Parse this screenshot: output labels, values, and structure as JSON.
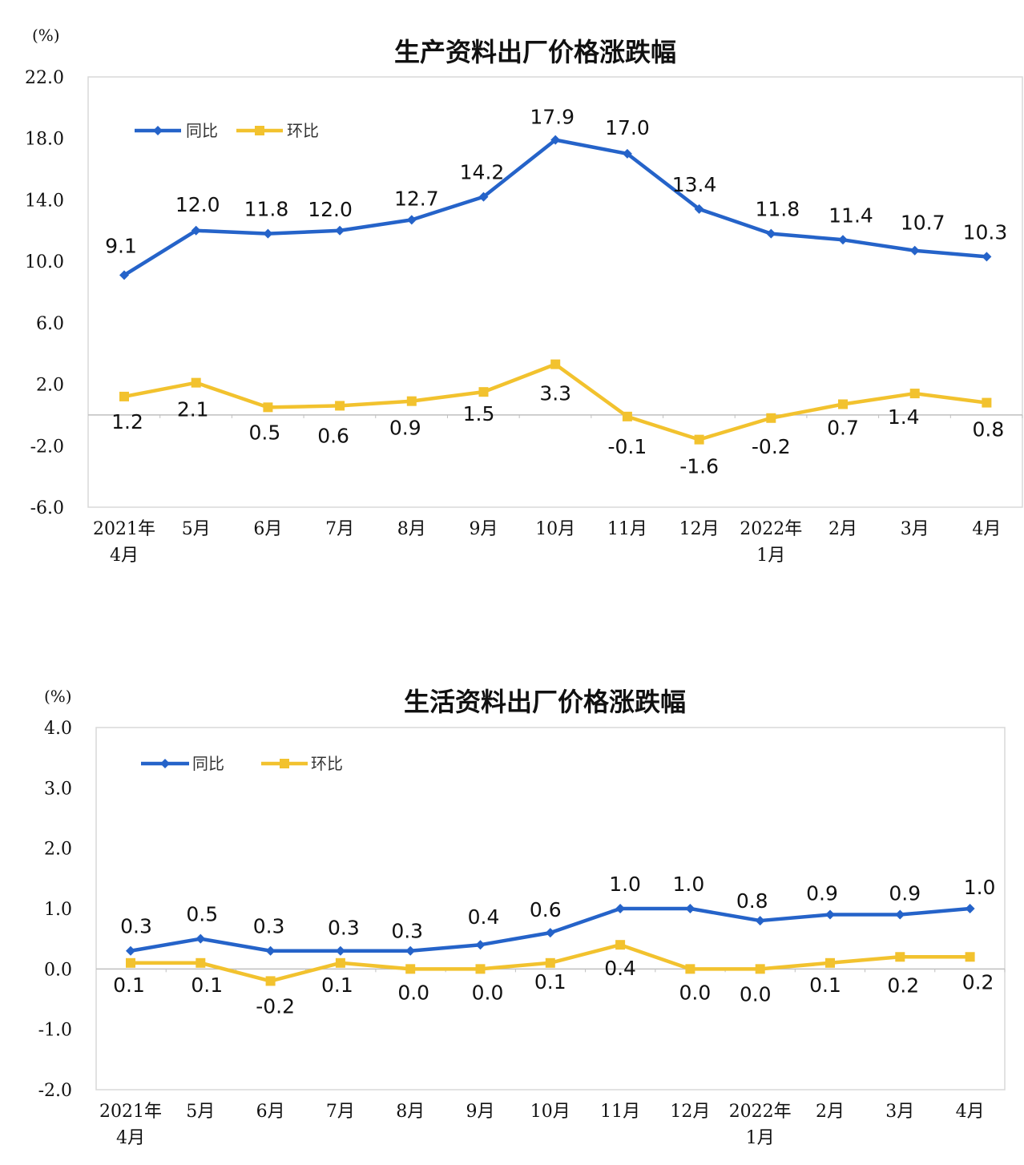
{
  "chart_data": [
    {
      "type": "line",
      "title": "生产资料出厂价格涨跌幅",
      "unit": "(%)",
      "ylim": [
        -6.0,
        22.0
      ],
      "yticks": [
        "22.0",
        "18.0",
        "14.0",
        "10.0",
        "6.0",
        "2.0",
        "-2.0",
        "-6.0"
      ],
      "ytick_values": [
        22,
        18,
        14,
        10,
        6,
        2,
        -2,
        -6
      ],
      "categories": [
        [
          "2021年",
          "4月"
        ],
        [
          "5月"
        ],
        [
          "6月"
        ],
        [
          "7月"
        ],
        [
          "8月"
        ],
        [
          "9月"
        ],
        [
          "10月"
        ],
        [
          "11月"
        ],
        [
          "12月"
        ],
        [
          "2022年",
          "1月"
        ],
        [
          "2月"
        ],
        [
          "3月"
        ],
        [
          "4月"
        ]
      ],
      "legend_position": "top-left",
      "series": [
        {
          "name": "同比",
          "color": "#2563c9",
          "marker": "diamond",
          "values": [
            9.1,
            12.0,
            11.8,
            12.0,
            12.7,
            14.2,
            17.9,
            17.0,
            13.4,
            11.8,
            11.4,
            10.7,
            10.3
          ],
          "labels": [
            "9.1",
            "12.0",
            "11.8",
            "12.0",
            "12.7",
            "14.2",
            "17.9",
            "17.0",
            "13.4",
            "11.8",
            "11.4",
            "10.7",
            "10.3"
          ]
        },
        {
          "name": "环比",
          "color": "#f2c22e",
          "marker": "square",
          "values": [
            1.2,
            2.1,
            0.5,
            0.6,
            0.9,
            1.5,
            3.3,
            -0.1,
            -1.6,
            -0.2,
            0.7,
            1.4,
            0.8
          ],
          "labels": [
            "1.2",
            "2.1",
            "0.5",
            "0.6",
            "0.9",
            "1.5",
            "3.3",
            "-0.1",
            "-1.6",
            "-0.2",
            "0.7",
            "1.4",
            "0.8"
          ]
        }
      ]
    },
    {
      "type": "line",
      "title": "生活资料出厂价格涨跌幅",
      "unit": "(%)",
      "ylim": [
        -2.0,
        4.0
      ],
      "yticks": [
        "4.0",
        "3.0",
        "2.0",
        "1.0",
        "0.0",
        "-1.0",
        "-2.0"
      ],
      "ytick_values": [
        4,
        3,
        2,
        1,
        0,
        -1,
        -2
      ],
      "categories": [
        [
          "2021年",
          "4月"
        ],
        [
          "5月"
        ],
        [
          "6月"
        ],
        [
          "7月"
        ],
        [
          "8月"
        ],
        [
          "9月"
        ],
        [
          "10月"
        ],
        [
          "11月"
        ],
        [
          "12月"
        ],
        [
          "2022年",
          "1月"
        ],
        [
          "2月"
        ],
        [
          "3月"
        ],
        [
          "4月"
        ]
      ],
      "legend_position": "top-left",
      "series": [
        {
          "name": "同比",
          "color": "#2563c9",
          "marker": "diamond",
          "values": [
            0.3,
            0.5,
            0.3,
            0.3,
            0.3,
            0.4,
            0.6,
            1.0,
            1.0,
            0.8,
            0.9,
            0.9,
            1.0
          ],
          "labels": [
            "0.3",
            "0.5",
            "0.3",
            "0.3",
            "0.3",
            "0.4",
            "0.6",
            "1.0",
            "1.0",
            "0.8",
            "0.9",
            "0.9",
            "1.0"
          ]
        },
        {
          "name": "环比",
          "color": "#f2c22e",
          "marker": "square",
          "values": [
            0.1,
            0.1,
            -0.2,
            0.1,
            0.0,
            0.0,
            0.1,
            0.4,
            0.0,
            0.0,
            0.1,
            0.2,
            0.2
          ],
          "labels": [
            "0.1",
            "0.1",
            "-0.2",
            "0.1",
            "0.0",
            "0.0",
            "0.1",
            "0.4",
            "0.0",
            "0.0",
            "0.1",
            "0.2",
            "0.2"
          ]
        }
      ]
    }
  ]
}
